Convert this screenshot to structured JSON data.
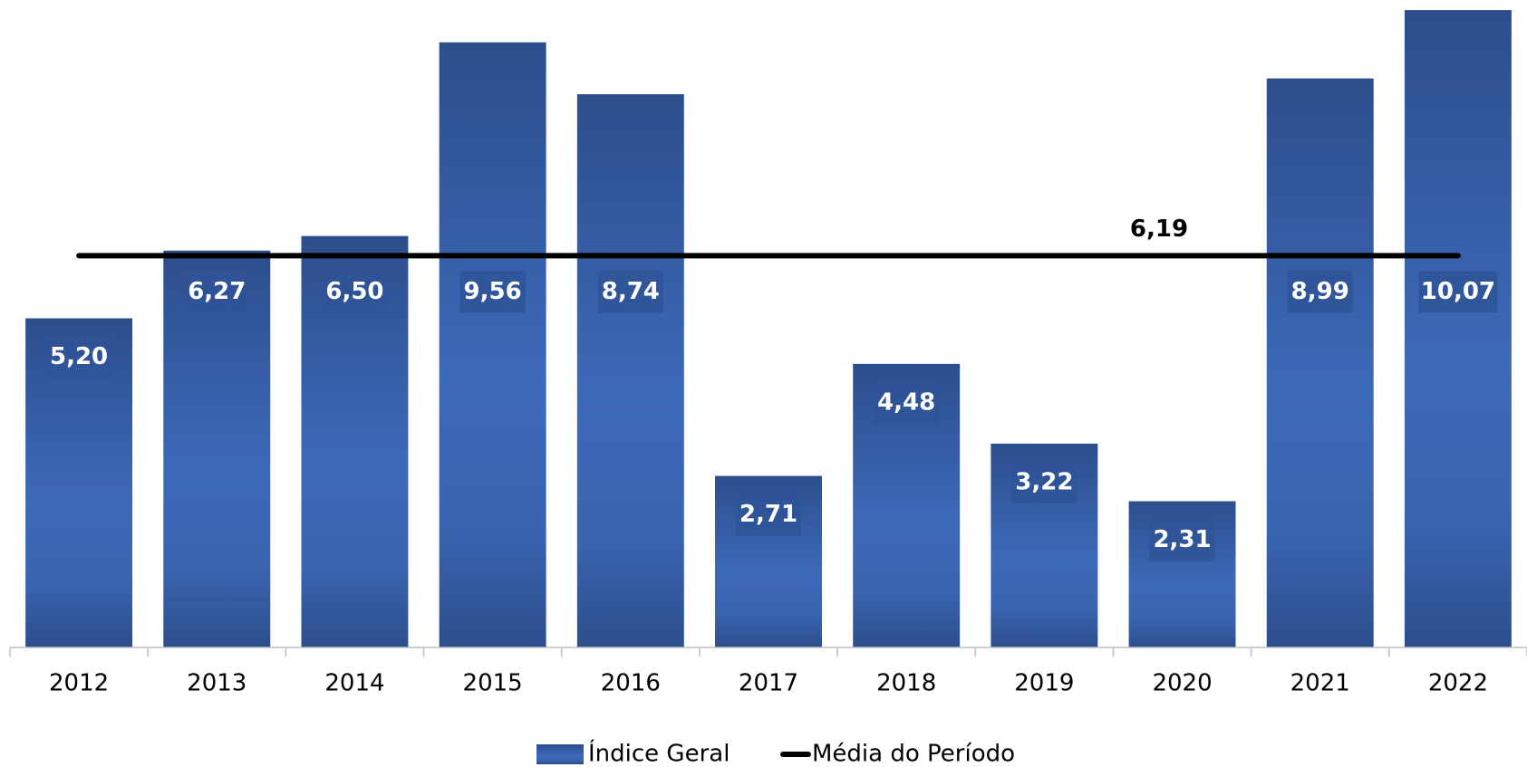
{
  "chart_data": {
    "type": "bar",
    "categories": [
      "2012",
      "2013",
      "2014",
      "2015",
      "2016",
      "2017",
      "2018",
      "2019",
      "2020",
      "2021",
      "2022"
    ],
    "series": [
      {
        "name": "Índice Geral",
        "color": "#3560ad",
        "values": [
          5.2,
          6.27,
          6.5,
          9.56,
          8.74,
          2.71,
          4.48,
          3.22,
          2.31,
          8.99,
          10.07
        ],
        "value_labels": [
          "5,20",
          "6,27",
          "6,50",
          "9,56",
          "8,74",
          "2,71",
          "4,48",
          "3,22",
          "2,31",
          "8,99",
          "10,07"
        ]
      }
    ],
    "average": {
      "name": "Média do Período",
      "value": 6.19,
      "value_label": "6,19",
      "color": "#000000"
    },
    "ylim": [
      0,
      10.1
    ]
  }
}
